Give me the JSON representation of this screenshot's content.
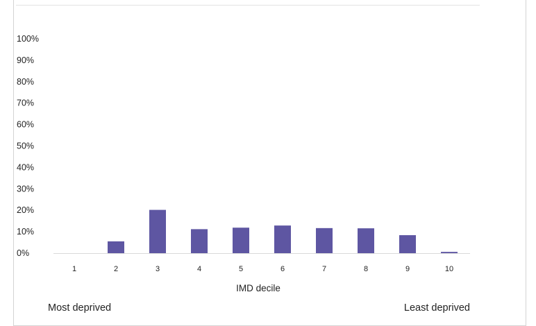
{
  "chart_data": {
    "type": "bar",
    "categories": [
      "1",
      "2",
      "3",
      "4",
      "5",
      "6",
      "7",
      "8",
      "9",
      "10"
    ],
    "values": [
      0,
      5.5,
      20.2,
      11.2,
      11.9,
      12.9,
      11.7,
      11.6,
      8.4,
      0.6
    ],
    "xlabel": "IMD decile",
    "ylabel": "",
    "ylim": [
      0,
      100
    ],
    "yticks": [
      "0%",
      "10%",
      "20%",
      "30%",
      "40%",
      "50%",
      "60%",
      "70%",
      "80%",
      "90%",
      "100%"
    ],
    "bar_color": "#5e56a2",
    "grid": false,
    "legend": "none",
    "annotations": {
      "left": "Most deprived",
      "right": "Least deprived"
    }
  }
}
